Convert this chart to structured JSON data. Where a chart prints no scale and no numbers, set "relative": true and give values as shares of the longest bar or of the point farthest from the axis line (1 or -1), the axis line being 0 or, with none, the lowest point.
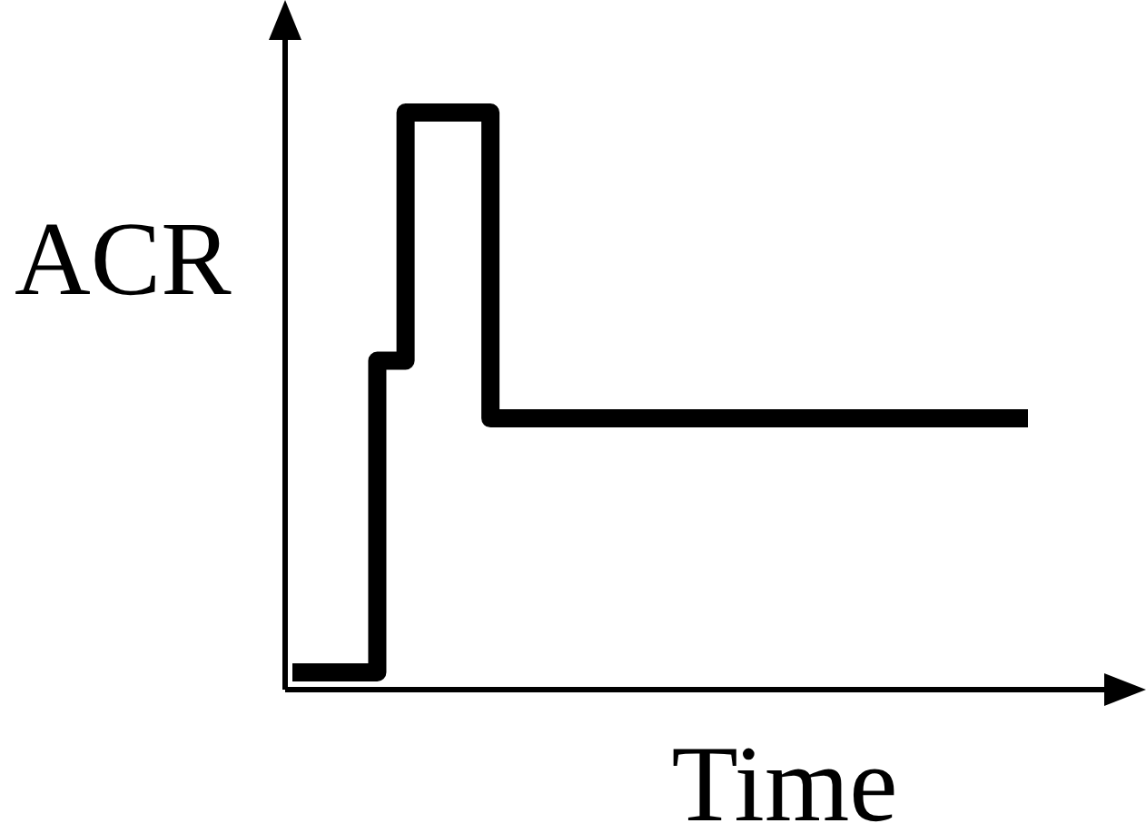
{
  "chart_data": {
    "type": "step",
    "relative": true,
    "xlabel": "Time",
    "ylabel": "ACR",
    "categories": [
      null,
      null,
      null,
      null,
      null,
      null,
      null,
      null,
      null,
      null,
      null,
      null,
      null,
      null,
      null,
      null,
      null,
      null,
      null,
      null,
      null,
      null,
      null,
      null,
      null,
      null,
      null
    ],
    "series": [
      {
        "color": "#000000",
        "values": [
          0.03,
          0.03,
          0.03,
          0.57,
          1,
          1,
          1,
          0.47,
          0.47,
          0.47,
          0.47,
          0.47,
          0.47,
          0.47,
          0.47,
          0.47,
          0.47,
          0.47,
          0.47,
          0.47,
          0.47,
          0.47,
          0.47,
          0.47,
          0.47,
          0.47,
          0.47
        ]
      }
    ],
    "marker": "none",
    "line_style": "solid"
  }
}
